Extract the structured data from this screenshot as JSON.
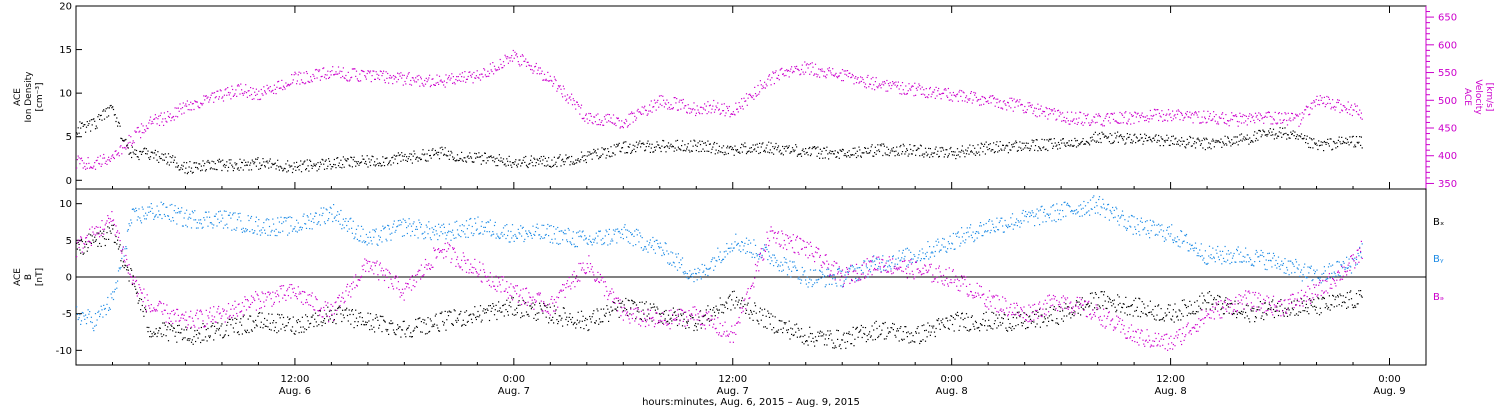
{
  "colors": {
    "density": "#000000",
    "velocity": "#cc00cc",
    "bx": "#000000",
    "by": "#1e8ce6",
    "bz": "#cc00cc",
    "axis": "#000000"
  },
  "x_axis": {
    "tick_hours": [
      12,
      24,
      36,
      48,
      60,
      72
    ],
    "tick_time_labels": [
      "12:00",
      "0:00",
      "12:00",
      "0:00",
      "12:00",
      "0:00"
    ],
    "tick_date_labels": [
      "Aug. 6",
      "Aug. 7",
      "Aug. 7",
      "Aug. 8",
      "Aug. 8",
      "Aug. 9"
    ],
    "xlabel": "hours:minutes, Aug.  6, 2015 – Aug.  9, 2015",
    "xlim_hours": [
      0,
      74
    ]
  },
  "chart_data": [
    {
      "type": "scatter",
      "title": "",
      "xlabel": "hours:minutes, Aug.  6, 2015 – Aug.  9, 2015",
      "ylabel_left": [
        "ACE",
        "Ion Density",
        "[cm⁻³]"
      ],
      "ylabel_right": [
        "ACE",
        "Velocity",
        "[km/s]"
      ],
      "ylim_left": [
        -1,
        20
      ],
      "yticks_left": [
        "0",
        "5",
        "10",
        "15",
        "20"
      ],
      "ylim_right": [
        340,
        670
      ],
      "yticks_right": [
        "350",
        "400",
        "450",
        "500",
        "550",
        "600",
        "650"
      ],
      "grid": false,
      "series": [
        {
          "key": "density",
          "axis": "left",
          "x_hours": [
            0,
            1,
            2,
            2.5,
            3,
            4,
            5,
            6,
            8,
            10,
            12,
            14,
            16,
            18,
            20,
            22,
            24,
            26,
            28,
            30,
            32,
            34,
            36,
            38,
            40,
            42,
            44,
            46,
            48,
            50,
            52,
            54,
            56,
            58,
            60,
            62,
            64,
            66,
            68,
            70,
            70.5
          ],
          "values": [
            6,
            6.5,
            8.5,
            5,
            3.2,
            3,
            2.5,
            1.5,
            1.8,
            2,
            1.6,
            2,
            2.2,
            2.6,
            3.2,
            2.6,
            2.2,
            2.2,
            2.8,
            3.8,
            4,
            4,
            3.6,
            3.8,
            3.4,
            3,
            3.6,
            3.5,
            3.2,
            3.8,
            4,
            4.2,
            5,
            4.8,
            4.6,
            4.2,
            4.8,
            5.6,
            4,
            4.6,
            4.3
          ]
        },
        {
          "key": "velocity",
          "axis": "right",
          "x_hours": [
            0,
            1,
            2,
            3,
            4,
            5,
            6,
            8,
            9,
            10,
            12,
            14,
            16,
            18,
            20,
            22,
            24,
            26,
            28,
            30,
            32,
            34,
            35,
            36,
            38,
            40,
            42,
            44,
            46,
            48,
            50,
            52,
            54,
            56,
            58,
            60,
            62,
            64,
            66,
            67,
            68,
            70,
            70.5
          ],
          "values": [
            390,
            385,
            400,
            430,
            460,
            470,
            490,
            510,
            520,
            510,
            540,
            550,
            545,
            540,
            535,
            545,
            580,
            540,
            470,
            460,
            500,
            485,
            490,
            480,
            540,
            560,
            545,
            530,
            520,
            510,
            500,
            490,
            470,
            465,
            470,
            475,
            470,
            465,
            470,
            465,
            500,
            485,
            470
          ]
        }
      ]
    },
    {
      "type": "scatter",
      "title": "",
      "xlabel": "hours:minutes, Aug.  6, 2015 – Aug.  9, 2015",
      "ylabel_left": [
        "ACE",
        "B",
        "[nT]"
      ],
      "ylim_left": [
        -12,
        12
      ],
      "yticks_left": [
        "-10",
        "-5",
        "0",
        "5",
        "10"
      ],
      "zero_line": true,
      "grid": false,
      "legend_position": "right",
      "series": [
        {
          "key": "bx",
          "name": "Bₓ",
          "x_hours": [
            0,
            1,
            2,
            3,
            4,
            5,
            6,
            8,
            10,
            12,
            14,
            16,
            18,
            20,
            22,
            24,
            26,
            28,
            30,
            32,
            34,
            36,
            38,
            40,
            42,
            44,
            46,
            48,
            50,
            52,
            54,
            56,
            58,
            60,
            62,
            64,
            66,
            68,
            70,
            70.5
          ],
          "values": [
            4,
            5,
            6,
            0,
            -7,
            -7.5,
            -8,
            -7,
            -6,
            -6.5,
            -5,
            -6,
            -7,
            -6,
            -5,
            -4,
            -5,
            -6,
            -4,
            -5,
            -6,
            -3,
            -6,
            -8,
            -8.5,
            -7,
            -8,
            -6,
            -6,
            -6,
            -5,
            -3,
            -4,
            -5,
            -3,
            -5,
            -4,
            -4,
            -3,
            -3
          ]
        },
        {
          "key": "by",
          "name": "Bᵧ",
          "x_hours": [
            0,
            1,
            2,
            3,
            4,
            5,
            6,
            8,
            10,
            12,
            14,
            16,
            18,
            20,
            22,
            24,
            26,
            28,
            30,
            32,
            34,
            36,
            38,
            40,
            42,
            44,
            46,
            48,
            50,
            52,
            54,
            56,
            58,
            60,
            62,
            64,
            66,
            68,
            70,
            70.5
          ],
          "values": [
            -5,
            -6,
            -3,
            8,
            9,
            9,
            8,
            8,
            7,
            7,
            9,
            5,
            7,
            6,
            7,
            6,
            6,
            5,
            6,
            4,
            0,
            5,
            3,
            0,
            0,
            2,
            3,
            5,
            7,
            8,
            9,
            10,
            7,
            6,
            3,
            3,
            2,
            0,
            2,
            4
          ]
        },
        {
          "key": "bz",
          "name": "Bₔ",
          "x_hours": [
            0,
            1,
            2,
            3,
            4,
            5,
            6,
            8,
            10,
            12,
            14,
            16,
            18,
            20,
            22,
            24,
            26,
            28,
            30,
            32,
            34,
            36,
            38,
            40,
            42,
            44,
            46,
            48,
            50,
            52,
            54,
            56,
            58,
            60,
            62,
            64,
            66,
            68,
            70,
            70.5
          ],
          "values": [
            4,
            6,
            8,
            0,
            -4,
            -5,
            -6,
            -5,
            -3,
            -2,
            -5,
            2,
            -2,
            4,
            1,
            -2,
            -4,
            2,
            -5,
            -6,
            -5,
            -8,
            6,
            4,
            0,
            2,
            1,
            0,
            -3,
            -5,
            -3,
            -5,
            -8,
            -9,
            -5,
            -3,
            -4,
            -2,
            2,
            4
          ]
        }
      ]
    }
  ]
}
